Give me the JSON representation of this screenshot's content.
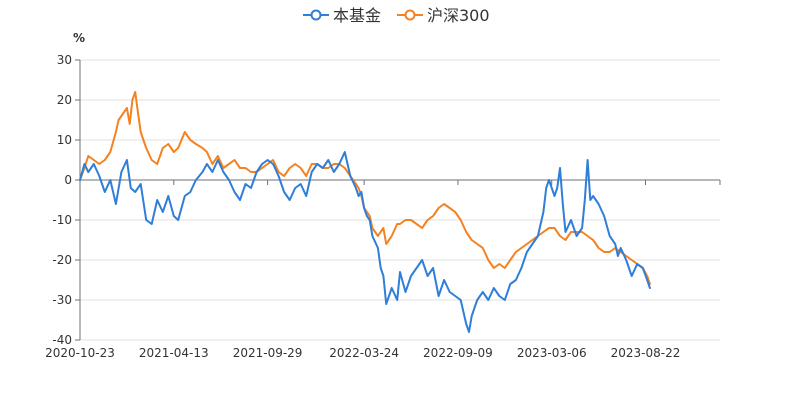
{
  "colors": {
    "fund": "#2f7ed8",
    "index": "#f58220",
    "axis": "#6e7079",
    "grid": "#e0e0e0"
  },
  "chart_data": {
    "type": "line",
    "ylabel": "%",
    "ylim": [
      -40,
      30
    ],
    "yticks": [
      30,
      20,
      10,
      0,
      -10,
      -20,
      -30,
      -40
    ],
    "xlim": [
      0,
      1160
    ],
    "xticks": [
      {
        "label": "2020-10-23",
        "x": 0
      },
      {
        "label": "2021-04-13",
        "x": 170
      },
      {
        "label": "2021-09-29",
        "x": 340
      },
      {
        "label": "2022-03-24",
        "x": 515
      },
      {
        "label": "2022-09-09",
        "x": 685
      },
      {
        "label": "2023-03-06",
        "x": 855
      },
      {
        "label": "2023-08-22",
        "x": 1025
      }
    ],
    "legend_position": "top-center",
    "series": [
      {
        "name": "本基金",
        "points": [
          [
            0,
            0
          ],
          [
            8,
            4
          ],
          [
            15,
            2
          ],
          [
            25,
            4
          ],
          [
            35,
            1
          ],
          [
            45,
            -3
          ],
          [
            55,
            0
          ],
          [
            65,
            -6
          ],
          [
            75,
            2
          ],
          [
            85,
            5
          ],
          [
            92,
            -2
          ],
          [
            100,
            -3
          ],
          [
            110,
            -1
          ],
          [
            120,
            -10
          ],
          [
            130,
            -11
          ],
          [
            140,
            -5
          ],
          [
            150,
            -8
          ],
          [
            160,
            -4
          ],
          [
            170,
            -9
          ],
          [
            178,
            -10
          ],
          [
            190,
            -4
          ],
          [
            200,
            -3
          ],
          [
            210,
            0
          ],
          [
            222,
            2
          ],
          [
            230,
            4
          ],
          [
            240,
            2
          ],
          [
            250,
            5
          ],
          [
            260,
            2
          ],
          [
            270,
            0
          ],
          [
            280,
            -3
          ],
          [
            290,
            -5
          ],
          [
            300,
            -1
          ],
          [
            310,
            -2
          ],
          [
            320,
            2
          ],
          [
            330,
            4
          ],
          [
            340,
            5
          ],
          [
            350,
            4
          ],
          [
            360,
            1
          ],
          [
            370,
            -3
          ],
          [
            380,
            -5
          ],
          [
            390,
            -2
          ],
          [
            400,
            -1
          ],
          [
            410,
            -4
          ],
          [
            420,
            2
          ],
          [
            430,
            4
          ],
          [
            440,
            3
          ],
          [
            450,
            5
          ],
          [
            460,
            2
          ],
          [
            470,
            4
          ],
          [
            480,
            7
          ],
          [
            490,
            1
          ],
          [
            500,
            -2
          ],
          [
            505,
            -4
          ],
          [
            510,
            -3
          ],
          [
            515,
            -7
          ],
          [
            520,
            -9
          ],
          [
            525,
            -10
          ],
          [
            530,
            -14
          ],
          [
            540,
            -17
          ],
          [
            545,
            -22
          ],
          [
            550,
            -24
          ],
          [
            555,
            -31
          ],
          [
            560,
            -29
          ],
          [
            565,
            -27
          ],
          [
            575,
            -30
          ],
          [
            580,
            -23
          ],
          [
            590,
            -28
          ],
          [
            600,
            -24
          ],
          [
            610,
            -22
          ],
          [
            620,
            -20
          ],
          [
            630,
            -24
          ],
          [
            640,
            -22
          ],
          [
            650,
            -29
          ],
          [
            660,
            -25
          ],
          [
            670,
            -28
          ],
          [
            680,
            -29
          ],
          [
            690,
            -30
          ],
          [
            700,
            -36
          ],
          [
            705,
            -38
          ],
          [
            710,
            -34
          ],
          [
            720,
            -30
          ],
          [
            730,
            -28
          ],
          [
            740,
            -30
          ],
          [
            750,
            -27
          ],
          [
            760,
            -29
          ],
          [
            770,
            -30
          ],
          [
            780,
            -26
          ],
          [
            790,
            -25
          ],
          [
            800,
            -22
          ],
          [
            810,
            -18
          ],
          [
            820,
            -16
          ],
          [
            830,
            -14
          ],
          [
            840,
            -8
          ],
          [
            845,
            -2
          ],
          [
            850,
            0
          ],
          [
            860,
            -4
          ],
          [
            865,
            -2
          ],
          [
            870,
            3
          ],
          [
            875,
            -6
          ],
          [
            880,
            -13
          ],
          [
            890,
            -10
          ],
          [
            900,
            -14
          ],
          [
            910,
            -12
          ],
          [
            915,
            -5
          ],
          [
            920,
            5
          ],
          [
            925,
            -5
          ],
          [
            930,
            -4
          ],
          [
            940,
            -6
          ],
          [
            950,
            -9
          ],
          [
            960,
            -14
          ],
          [
            970,
            -16
          ],
          [
            975,
            -19
          ],
          [
            980,
            -17
          ],
          [
            990,
            -20
          ],
          [
            1000,
            -24
          ],
          [
            1010,
            -21
          ],
          [
            1020,
            -22
          ],
          [
            1028,
            -25
          ],
          [
            1033,
            -27
          ]
        ]
      },
      {
        "name": "沪深300",
        "points": [
          [
            0,
            0
          ],
          [
            8,
            3
          ],
          [
            15,
            6
          ],
          [
            25,
            5
          ],
          [
            35,
            4
          ],
          [
            45,
            5
          ],
          [
            55,
            7
          ],
          [
            65,
            12
          ],
          [
            70,
            15
          ],
          [
            75,
            16
          ],
          [
            85,
            18
          ],
          [
            90,
            14
          ],
          [
            95,
            20
          ],
          [
            100,
            22
          ],
          [
            105,
            17
          ],
          [
            110,
            12
          ],
          [
            115,
            10
          ],
          [
            120,
            8
          ],
          [
            130,
            5
          ],
          [
            140,
            4
          ],
          [
            150,
            8
          ],
          [
            160,
            9
          ],
          [
            170,
            7
          ],
          [
            178,
            8
          ],
          [
            190,
            12
          ],
          [
            200,
            10
          ],
          [
            210,
            9
          ],
          [
            222,
            8
          ],
          [
            230,
            7
          ],
          [
            240,
            4
          ],
          [
            250,
            6
          ],
          [
            260,
            3
          ],
          [
            270,
            4
          ],
          [
            280,
            5
          ],
          [
            290,
            3
          ],
          [
            300,
            3
          ],
          [
            310,
            2
          ],
          [
            320,
            2
          ],
          [
            330,
            3
          ],
          [
            340,
            4
          ],
          [
            350,
            5
          ],
          [
            360,
            2
          ],
          [
            370,
            1
          ],
          [
            380,
            3
          ],
          [
            390,
            4
          ],
          [
            400,
            3
          ],
          [
            410,
            1
          ],
          [
            420,
            4
          ],
          [
            430,
            4
          ],
          [
            440,
            3
          ],
          [
            450,
            3
          ],
          [
            460,
            4
          ],
          [
            470,
            4
          ],
          [
            480,
            3
          ],
          [
            490,
            1
          ],
          [
            495,
            0
          ],
          [
            500,
            -1
          ],
          [
            505,
            -2
          ],
          [
            510,
            -4
          ],
          [
            515,
            -7
          ],
          [
            520,
            -8
          ],
          [
            525,
            -9
          ],
          [
            530,
            -12
          ],
          [
            540,
            -14
          ],
          [
            550,
            -12
          ],
          [
            555,
            -16
          ],
          [
            560,
            -15
          ],
          [
            565,
            -14
          ],
          [
            575,
            -11
          ],
          [
            580,
            -11
          ],
          [
            590,
            -10
          ],
          [
            600,
            -10
          ],
          [
            610,
            -11
          ],
          [
            620,
            -12
          ],
          [
            630,
            -10
          ],
          [
            640,
            -9
          ],
          [
            650,
            -7
          ],
          [
            660,
            -6
          ],
          [
            670,
            -7
          ],
          [
            680,
            -8
          ],
          [
            690,
            -10
          ],
          [
            700,
            -13
          ],
          [
            710,
            -15
          ],
          [
            720,
            -16
          ],
          [
            730,
            -17
          ],
          [
            740,
            -20
          ],
          [
            750,
            -22
          ],
          [
            760,
            -21
          ],
          [
            770,
            -22
          ],
          [
            780,
            -20
          ],
          [
            790,
            -18
          ],
          [
            800,
            -17
          ],
          [
            810,
            -16
          ],
          [
            820,
            -15
          ],
          [
            830,
            -14
          ],
          [
            840,
            -13
          ],
          [
            850,
            -12
          ],
          [
            860,
            -12
          ],
          [
            870,
            -14
          ],
          [
            880,
            -15
          ],
          [
            890,
            -13
          ],
          [
            900,
            -13
          ],
          [
            910,
            -13
          ],
          [
            920,
            -14
          ],
          [
            930,
            -15
          ],
          [
            940,
            -17
          ],
          [
            950,
            -18
          ],
          [
            960,
            -18
          ],
          [
            970,
            -17
          ],
          [
            980,
            -18
          ],
          [
            990,
            -19
          ],
          [
            1000,
            -20
          ],
          [
            1010,
            -21
          ],
          [
            1020,
            -22
          ],
          [
            1028,
            -24
          ],
          [
            1033,
            -26
          ]
        ]
      }
    ]
  }
}
